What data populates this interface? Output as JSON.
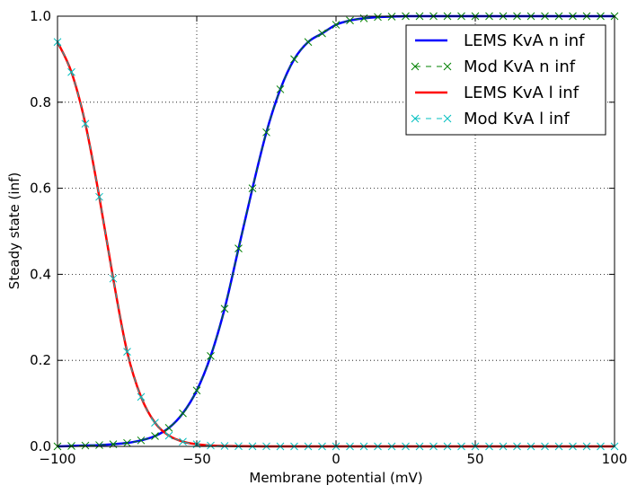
{
  "chart_data": {
    "type": "line",
    "title": "",
    "xlabel": "Membrane potential (mV)",
    "ylabel": "Steady state (inf)",
    "xlim": [
      -100,
      100
    ],
    "ylim": [
      0.0,
      1.0
    ],
    "xticks": [
      -100,
      -50,
      0,
      50,
      100
    ],
    "xtick_labels": [
      "−100",
      "−50",
      "0",
      "50",
      "100"
    ],
    "yticks": [
      0.0,
      0.2,
      0.4,
      0.6,
      0.8,
      1.0
    ],
    "ytick_labels": [
      "0.0",
      "0.2",
      "0.4",
      "0.6",
      "0.8",
      "1.0"
    ],
    "grid": true,
    "legend_position": "top-right",
    "x": [
      -100,
      -95,
      -90,
      -85,
      -80,
      -75,
      -70,
      -65,
      -60,
      -55,
      -50,
      -45,
      -40,
      -35,
      -30,
      -25,
      -20,
      -15,
      -10,
      -5,
      0,
      5,
      10,
      15,
      20,
      25,
      30,
      35,
      40,
      45,
      50,
      55,
      60,
      65,
      70,
      75,
      80,
      85,
      90,
      95,
      100
    ],
    "series": [
      {
        "name": "LEMS KvA n inf",
        "color": "#0000ff",
        "style": "solid",
        "values": [
          0.0,
          0.001,
          0.002,
          0.003,
          0.005,
          0.008,
          0.014,
          0.024,
          0.043,
          0.077,
          0.13,
          0.21,
          0.32,
          0.46,
          0.6,
          0.73,
          0.83,
          0.9,
          0.94,
          0.96,
          0.98,
          0.99,
          0.995,
          0.998,
          0.999,
          1.0,
          1.0,
          1.0,
          1.0,
          1.0,
          1.0,
          1.0,
          1.0,
          1.0,
          1.0,
          1.0,
          1.0,
          1.0,
          1.0,
          1.0,
          1.0
        ]
      },
      {
        "name": "Mod KvA n inf",
        "color": "#008000",
        "style": "dashed-x",
        "values": [
          0.0,
          0.001,
          0.002,
          0.003,
          0.005,
          0.008,
          0.014,
          0.024,
          0.043,
          0.077,
          0.13,
          0.21,
          0.32,
          0.46,
          0.6,
          0.73,
          0.83,
          0.9,
          0.94,
          0.96,
          0.98,
          0.99,
          0.995,
          0.998,
          0.999,
          1.0,
          1.0,
          1.0,
          1.0,
          1.0,
          1.0,
          1.0,
          1.0,
          1.0,
          1.0,
          1.0,
          1.0,
          1.0,
          1.0,
          1.0,
          1.0
        ]
      },
      {
        "name": "LEMS KvA l inf",
        "color": "#ff0000",
        "style": "solid",
        "values": [
          0.94,
          0.87,
          0.75,
          0.58,
          0.39,
          0.22,
          0.115,
          0.055,
          0.025,
          0.011,
          0.005,
          0.002,
          0.001,
          0.0005,
          0.0002,
          0.0001,
          0.0,
          0.0,
          0.0,
          0.0,
          0.0,
          0.0,
          0.0,
          0.0,
          0.0,
          0.0,
          0.0,
          0.0,
          0.0,
          0.0,
          0.0,
          0.0,
          0.0,
          0.0,
          0.0,
          0.0,
          0.0,
          0.0,
          0.0,
          0.0,
          0.0
        ]
      },
      {
        "name": "Mod KvA l inf",
        "color": "#00bfbf",
        "style": "dashed-x",
        "values": [
          0.94,
          0.87,
          0.75,
          0.58,
          0.39,
          0.22,
          0.115,
          0.055,
          0.025,
          0.011,
          0.005,
          0.002,
          0.001,
          0.0005,
          0.0002,
          0.0001,
          0.0,
          0.0,
          0.0,
          0.0,
          0.0,
          0.0,
          0.0,
          0.0,
          0.0,
          0.0,
          0.0,
          0.0,
          0.0,
          0.0,
          0.0,
          0.0,
          0.0,
          0.0,
          0.0,
          0.0,
          0.0,
          0.0,
          0.0,
          0.0,
          0.0
        ]
      }
    ]
  }
}
